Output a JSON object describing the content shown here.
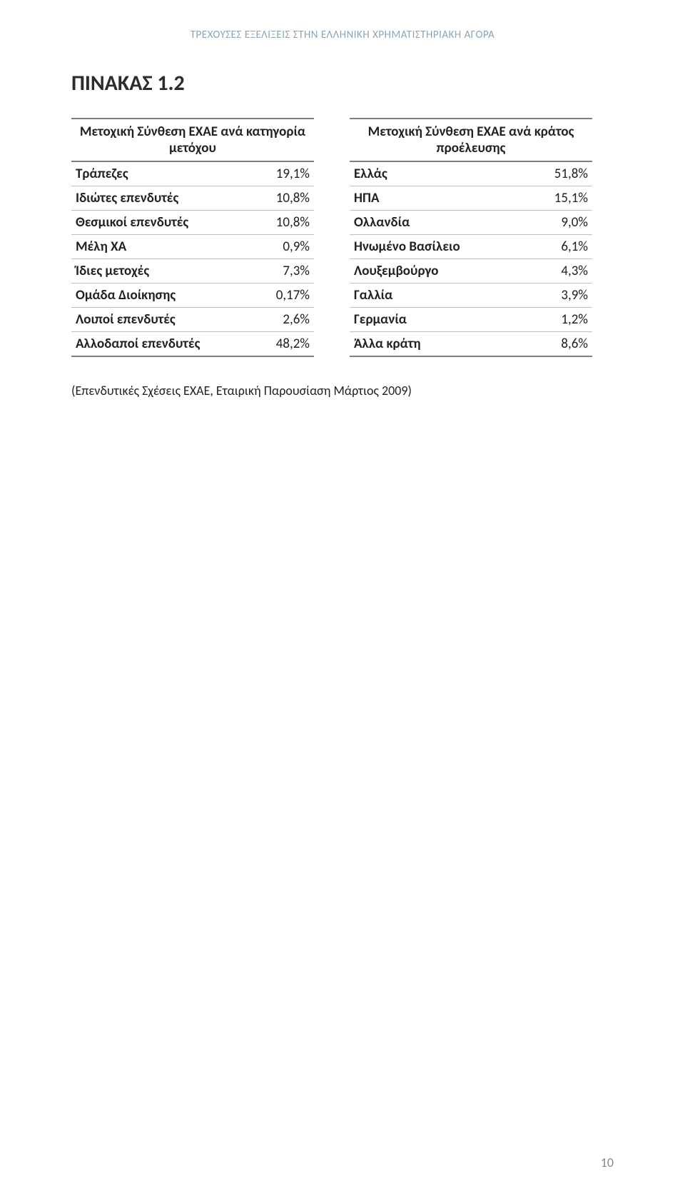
{
  "running_header": "ΤΡΕΧΟΥΣΕΣ ΕΞΕΛΙΞΕΙΣ ΣΤΗΝ ΕΛΛΗΝΙΚΗ ΧΡΗΜΑΤΙΣΤΗΡΙΑΚΗ ΑΓΟΡΑ",
  "title": "ΠΙΝΑΚΑΣ 1.2",
  "table_left": {
    "header": "Μετοχική Σύνθεση ΕΧΑΕ  ανά κατηγορία μετόχου",
    "rows": [
      {
        "label": "Τράπεζες",
        "value": "19,1%"
      },
      {
        "label": "Ιδιώτες επενδυτές",
        "value": "10,8%"
      },
      {
        "label": "Θεσμικοί επενδυτές",
        "value": "10,8%"
      },
      {
        "label": "Μέλη ΧΑ",
        "value": "0,9%"
      },
      {
        "label": "Ίδιες μετοχές",
        "value": "7,3%"
      },
      {
        "label": "Ομάδα Διοίκησης",
        "value": "0,17%"
      },
      {
        "label": "Λοιποί επενδυτές",
        "value": "2,6%"
      },
      {
        "label": "Αλλοδαποί επενδυτές",
        "value": "48,2%"
      }
    ]
  },
  "table_right": {
    "header": "Μετοχική Σύνθεση ΕΧΑΕ  ανά κράτος προέλευσης",
    "rows": [
      {
        "label": "Ελλάς",
        "value": "51,8%"
      },
      {
        "label": "ΗΠΑ",
        "value": "15,1%"
      },
      {
        "label": "Ολλανδία",
        "value": "9,0%"
      },
      {
        "label": "Ηνωμένο Βασίλειο",
        "value": "6,1%"
      },
      {
        "label": "Λουξεμβούργο",
        "value": "4,3%"
      },
      {
        "label": "Γαλλία",
        "value": "3,9%"
      },
      {
        "label": "Γερμανία",
        "value": "1,2%"
      },
      {
        "label": "Άλλα κράτη",
        "value": "8,6%"
      }
    ]
  },
  "source_note": "(Επενδυτικές Σχέσεις ΕΧΑΕ, Εταιρική Παρουσίαση Μάρτιος 2009)",
  "page_number": "10",
  "style": {
    "header_color": "#8da4b5",
    "border_color": "#7f7f7f",
    "row_border_color": "#bfbfbf",
    "text_color": "#222222",
    "background": "#ffffff"
  }
}
